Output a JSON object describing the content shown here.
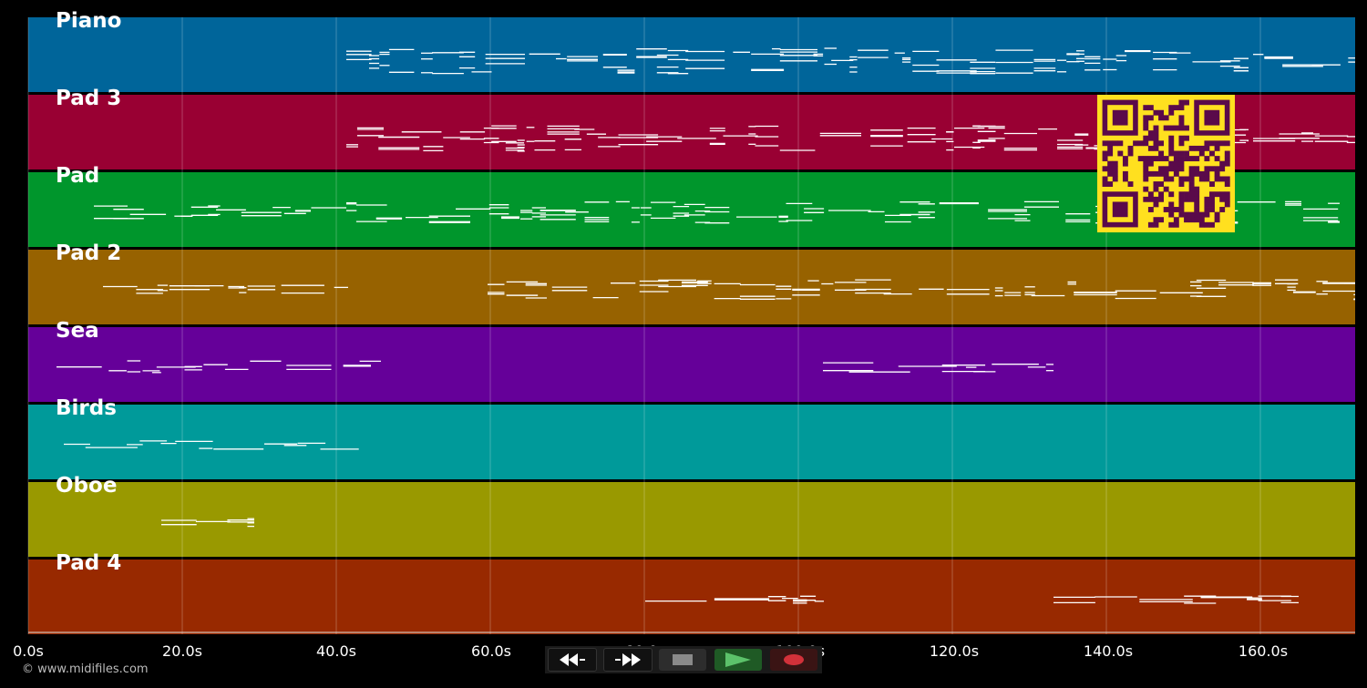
{
  "tracks": [
    {
      "name": "Piano",
      "color": "#00659a"
    },
    {
      "name": "Pad 3",
      "color": "#990033"
    },
    {
      "name": "Pad",
      "color": "#00962c"
    },
    {
      "name": "Pad 2",
      "color": "#976200"
    },
    {
      "name": "Sea",
      "color": "#650099"
    },
    {
      "name": "Birds",
      "color": "#009a9a"
    },
    {
      "name": "Oboe",
      "color": "#999900"
    },
    {
      "name": "Pad 4",
      "color": "#982900"
    }
  ],
  "time_axis": {
    "ticks": [
      "0.0s",
      "20.0s",
      "40.0s",
      "60.0s",
      "80.0s",
      "100.0s",
      "120.0s",
      "140.0s",
      "160.0s"
    ]
  },
  "transport": {
    "buttons": [
      {
        "id": "rewind",
        "icon": "rewind-icon"
      },
      {
        "id": "fast-forward",
        "icon": "fast-forward-icon"
      },
      {
        "id": "stop",
        "icon": "stop-icon"
      },
      {
        "id": "play",
        "icon": "play-icon"
      },
      {
        "id": "record",
        "icon": "record-icon"
      }
    ]
  },
  "copyright": "© www.midifiles.com",
  "qr_code": {
    "icon": "qr-code-icon",
    "fg": "#5a0a4a",
    "bg": "#ffe01f"
  }
}
